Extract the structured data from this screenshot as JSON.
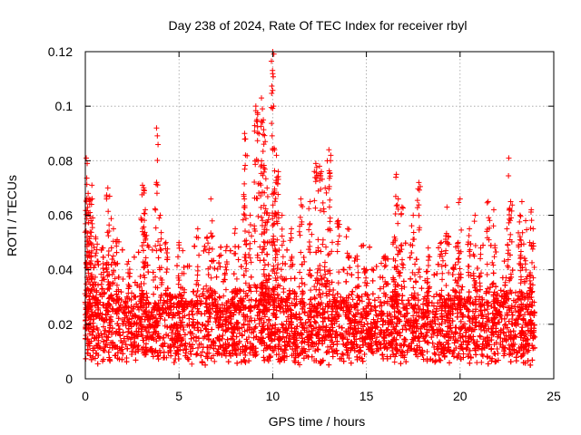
{
  "chart_data": {
    "type": "scatter",
    "title": "Day 238 of 2024, Rate Of TEC Index for receiver rbyl",
    "xlabel": "GPS time / hours",
    "ylabel": "ROTI / TECUs",
    "xlim": [
      0,
      25
    ],
    "ylim": [
      0,
      0.12
    ],
    "xticks": [
      0,
      5,
      10,
      15,
      20,
      25
    ],
    "xtick_labels": [
      "0",
      "5",
      "10",
      "15",
      "20",
      "25"
    ],
    "yticks": [
      0,
      0.02,
      0.04,
      0.06,
      0.08,
      0.1,
      0.12
    ],
    "ytick_labels": [
      "0",
      "0.02",
      "0.04",
      "0.06",
      "0.08",
      "0.1",
      "0.12"
    ],
    "grid": true,
    "marker": "+",
    "series": [
      {
        "name": "ROTI",
        "color": "#ff0000",
        "description": "dense cloud of ROTI samples from 0 to 24 h, base level 0.005-0.03 TECU/s with spikes",
        "x_range": [
          0.0,
          24.0
        ],
        "baseline_range": [
          0.005,
          0.03
        ],
        "peaks": [
          {
            "x": 0.05,
            "y": 0.081
          },
          {
            "x": 0.1,
            "y": 0.079
          },
          {
            "x": 0.15,
            "y": 0.068
          },
          {
            "x": 0.2,
            "y": 0.066
          },
          {
            "x": 0.25,
            "y": 0.061
          },
          {
            "x": 0.3,
            "y": 0.058
          },
          {
            "x": 0.35,
            "y": 0.071
          },
          {
            "x": 0.55,
            "y": 0.052
          },
          {
            "x": 0.9,
            "y": 0.048
          },
          {
            "x": 1.2,
            "y": 0.07
          },
          {
            "x": 1.3,
            "y": 0.067
          },
          {
            "x": 1.5,
            "y": 0.055
          },
          {
            "x": 1.7,
            "y": 0.051
          },
          {
            "x": 2.3,
            "y": 0.043
          },
          {
            "x": 3.05,
            "y": 0.071
          },
          {
            "x": 3.15,
            "y": 0.069
          },
          {
            "x": 3.2,
            "y": 0.062
          },
          {
            "x": 3.8,
            "y": 0.092
          },
          {
            "x": 4.0,
            "y": 0.06
          },
          {
            "x": 4.3,
            "y": 0.05
          },
          {
            "x": 5.0,
            "y": 0.05
          },
          {
            "x": 5.2,
            "y": 0.047
          },
          {
            "x": 6.0,
            "y": 0.055
          },
          {
            "x": 6.5,
            "y": 0.052
          },
          {
            "x": 6.7,
            "y": 0.066
          },
          {
            "x": 7.5,
            "y": 0.047
          },
          {
            "x": 8.0,
            "y": 0.055
          },
          {
            "x": 8.5,
            "y": 0.09
          },
          {
            "x": 8.55,
            "y": 0.088
          },
          {
            "x": 8.8,
            "y": 0.06
          },
          {
            "x": 9.1,
            "y": 0.1
          },
          {
            "x": 9.2,
            "y": 0.097
          },
          {
            "x": 9.4,
            "y": 0.103
          },
          {
            "x": 9.45,
            "y": 0.099
          },
          {
            "x": 9.5,
            "y": 0.095
          },
          {
            "x": 9.6,
            "y": 0.087
          },
          {
            "x": 9.7,
            "y": 0.07
          },
          {
            "x": 9.8,
            "y": 0.06
          },
          {
            "x": 10.0,
            "y": 0.12
          },
          {
            "x": 10.05,
            "y": 0.1
          },
          {
            "x": 10.1,
            "y": 0.084
          },
          {
            "x": 10.2,
            "y": 0.082
          },
          {
            "x": 10.3,
            "y": 0.076
          },
          {
            "x": 10.5,
            "y": 0.06
          },
          {
            "x": 11.0,
            "y": 0.055
          },
          {
            "x": 11.5,
            "y": 0.066
          },
          {
            "x": 12.0,
            "y": 0.065
          },
          {
            "x": 12.3,
            "y": 0.079
          },
          {
            "x": 12.5,
            "y": 0.078
          },
          {
            "x": 12.6,
            "y": 0.076
          },
          {
            "x": 12.8,
            "y": 0.07
          },
          {
            "x": 13.0,
            "y": 0.084
          },
          {
            "x": 13.1,
            "y": 0.082
          },
          {
            "x": 13.5,
            "y": 0.058
          },
          {
            "x": 14.0,
            "y": 0.055
          },
          {
            "x": 14.5,
            "y": 0.045
          },
          {
            "x": 15.0,
            "y": 0.04
          },
          {
            "x": 16.0,
            "y": 0.045
          },
          {
            "x": 16.5,
            "y": 0.052
          },
          {
            "x": 16.6,
            "y": 0.075
          },
          {
            "x": 16.7,
            "y": 0.066
          },
          {
            "x": 16.9,
            "y": 0.063
          },
          {
            "x": 17.5,
            "y": 0.06
          },
          {
            "x": 17.8,
            "y": 0.072
          },
          {
            "x": 18.3,
            "y": 0.048
          },
          {
            "x": 19.0,
            "y": 0.05
          },
          {
            "x": 19.3,
            "y": 0.063
          },
          {
            "x": 19.9,
            "y": 0.05
          },
          {
            "x": 20.0,
            "y": 0.066
          },
          {
            "x": 20.5,
            "y": 0.055
          },
          {
            "x": 20.8,
            "y": 0.06
          },
          {
            "x": 21.1,
            "y": 0.048
          },
          {
            "x": 21.5,
            "y": 0.065
          },
          {
            "x": 21.8,
            "y": 0.062
          },
          {
            "x": 22.5,
            "y": 0.055
          },
          {
            "x": 22.6,
            "y": 0.081
          },
          {
            "x": 22.7,
            "y": 0.065
          },
          {
            "x": 23.2,
            "y": 0.06
          },
          {
            "x": 23.3,
            "y": 0.065
          },
          {
            "x": 23.5,
            "y": 0.058
          },
          {
            "x": 23.8,
            "y": 0.062
          },
          {
            "x": 23.9,
            "y": 0.055
          }
        ]
      }
    ]
  }
}
